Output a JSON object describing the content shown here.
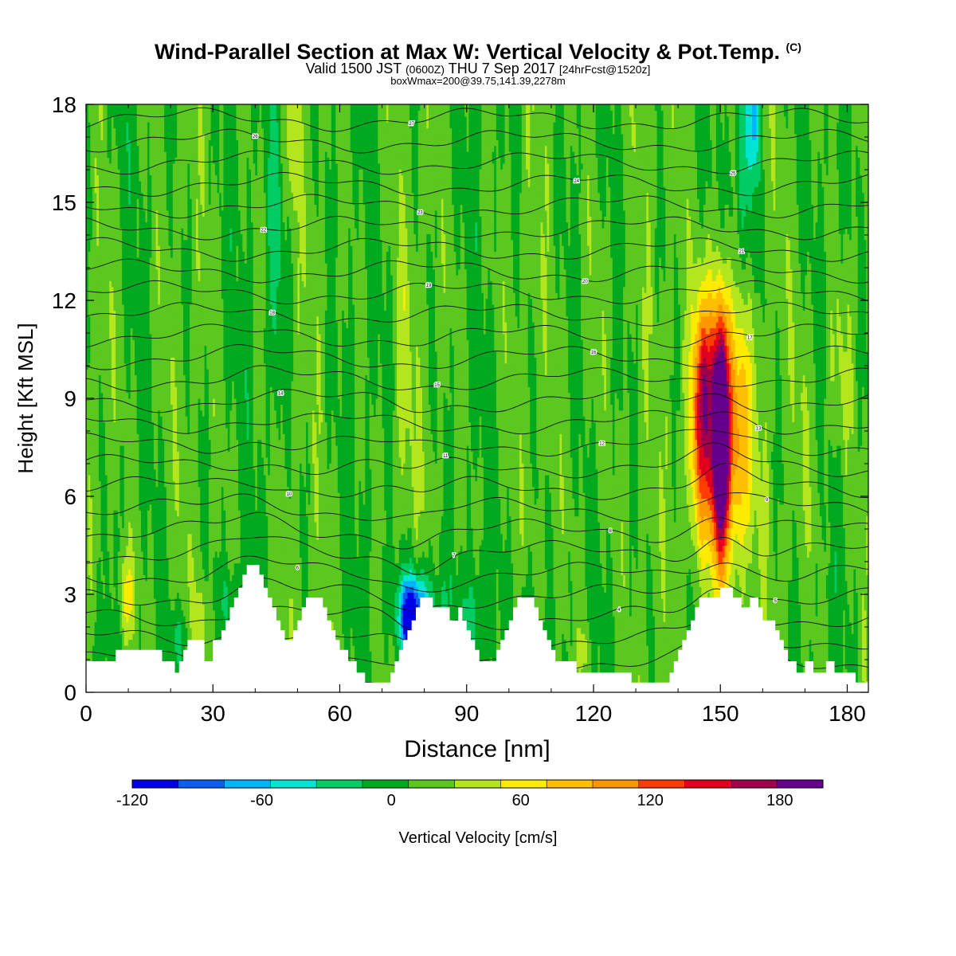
{
  "title": {
    "main": "Wind-Parallel Section at Max W: Vertical Velocity & Pot.Temp.",
    "copyright": "(C)",
    "valid_prefix": "Valid 1500 JST",
    "valid_z": "(0600Z)",
    "valid_date": "THU 7 Sep 2017",
    "fcst": "[24hrFcst@1520z]",
    "box": "boxWmax=200@39.75,141.39,2278m"
  },
  "chart_data": {
    "type": "heatmap",
    "xlabel": "Distance [nm]",
    "ylabel": "Height [Kft MSL]",
    "xlim": [
      0,
      185
    ],
    "ylim": [
      0,
      18
    ],
    "x_ticks": [
      0,
      30,
      60,
      90,
      120,
      150,
      180
    ],
    "y_ticks": [
      0,
      3,
      6,
      9,
      12,
      15,
      18
    ],
    "colorbar": {
      "label": "Vertical Velocity [cm/s]",
      "min": -120,
      "max": 200,
      "step": 20,
      "tick_values": [
        -120,
        -60,
        0,
        60,
        120,
        180
      ],
      "colors": [
        "#0000e6",
        "#0a5ff0",
        "#00b4ff",
        "#00e6d2",
        "#00cc64",
        "#00aa1e",
        "#5ac81e",
        "#b4e61e",
        "#ffeb00",
        "#ffbe00",
        "#ff9600",
        "#ff3c00",
        "#e1001e",
        "#a0004b",
        "#64008c"
      ]
    },
    "terrain_kft": [
      [
        0,
        0.95
      ],
      [
        2,
        0.95
      ],
      [
        7,
        0.95
      ],
      [
        7,
        1.3
      ],
      [
        18,
        1.3
      ],
      [
        18,
        0.95
      ],
      [
        21,
        0.95
      ],
      [
        21,
        0.6
      ],
      [
        22,
        0.6
      ],
      [
        22,
        0.95
      ],
      [
        23,
        0.95
      ],
      [
        23,
        1.3
      ],
      [
        24,
        1.3
      ],
      [
        24,
        1.6
      ],
      [
        28,
        1.6
      ],
      [
        28,
        0.95
      ],
      [
        30,
        0.95
      ],
      [
        30,
        1.6
      ],
      [
        32,
        1.6
      ],
      [
        32,
        1.9
      ],
      [
        33,
        1.9
      ],
      [
        33,
        2.2
      ],
      [
        34,
        2.2
      ],
      [
        34,
        2.6
      ],
      [
        35,
        2.6
      ],
      [
        35,
        2.9
      ],
      [
        36,
        2.9
      ],
      [
        36,
        3.2
      ],
      [
        37,
        3.2
      ],
      [
        37,
        3.6
      ],
      [
        38,
        3.6
      ],
      [
        38,
        3.9
      ],
      [
        41,
        3.9
      ],
      [
        41,
        3.6
      ],
      [
        42,
        3.6
      ],
      [
        42,
        3.2
      ],
      [
        43,
        3.2
      ],
      [
        43,
        2.9
      ],
      [
        44,
        2.9
      ],
      [
        44,
        2.6
      ],
      [
        45,
        2.6
      ],
      [
        45,
        2.2
      ],
      [
        46,
        2.2
      ],
      [
        46,
        1.9
      ],
      [
        47,
        1.9
      ],
      [
        47,
        1.6
      ],
      [
        49,
        1.6
      ],
      [
        49,
        1.9
      ],
      [
        50,
        1.9
      ],
      [
        50,
        2.2
      ],
      [
        51,
        2.2
      ],
      [
        51,
        2.6
      ],
      [
        52,
        2.6
      ],
      [
        52,
        2.9
      ],
      [
        56,
        2.9
      ],
      [
        56,
        2.6
      ],
      [
        57,
        2.6
      ],
      [
        57,
        2.2
      ],
      [
        58,
        2.2
      ],
      [
        58,
        1.9
      ],
      [
        59,
        1.9
      ],
      [
        59,
        1.6
      ],
      [
        60,
        1.6
      ],
      [
        60,
        1.3
      ],
      [
        62,
        1.3
      ],
      [
        62,
        0.95
      ],
      [
        64,
        0.95
      ],
      [
        64,
        0.6
      ],
      [
        66,
        0.6
      ],
      [
        66,
        0.3
      ],
      [
        72,
        0.3
      ],
      [
        72,
        0.6
      ],
      [
        73,
        0.6
      ],
      [
        73,
        0.95
      ],
      [
        74,
        0.95
      ],
      [
        74,
        1.3
      ],
      [
        75,
        1.3
      ],
      [
        75,
        1.6
      ],
      [
        76,
        1.6
      ],
      [
        76,
        1.9
      ],
      [
        77,
        1.9
      ],
      [
        77,
        2.2
      ],
      [
        78,
        2.2
      ],
      [
        78,
        2.6
      ],
      [
        79,
        2.6
      ],
      [
        79,
        2.9
      ],
      [
        82,
        2.9
      ],
      [
        82,
        2.6
      ],
      [
        86,
        2.6
      ],
      [
        86,
        2.2
      ],
      [
        88,
        2.2
      ],
      [
        88,
        2.6
      ],
      [
        89,
        2.6
      ],
      [
        89,
        2.2
      ],
      [
        90,
        2.2
      ],
      [
        90,
        1.9
      ],
      [
        91,
        1.9
      ],
      [
        91,
        1.6
      ],
      [
        92,
        1.6
      ],
      [
        92,
        1.3
      ],
      [
        93,
        1.3
      ],
      [
        93,
        0.95
      ],
      [
        97,
        0.95
      ],
      [
        97,
        1.3
      ],
      [
        98,
        1.3
      ],
      [
        98,
        1.6
      ],
      [
        99,
        1.6
      ],
      [
        99,
        1.9
      ],
      [
        100,
        1.9
      ],
      [
        100,
        2.2
      ],
      [
        101,
        2.2
      ],
      [
        101,
        2.6
      ],
      [
        102,
        2.6
      ],
      [
        102,
        2.9
      ],
      [
        106,
        2.9
      ],
      [
        106,
        2.6
      ],
      [
        107,
        2.6
      ],
      [
        107,
        2.2
      ],
      [
        108,
        2.2
      ],
      [
        108,
        1.9
      ],
      [
        109,
        1.9
      ],
      [
        109,
        1.6
      ],
      [
        110,
        1.6
      ],
      [
        110,
        1.3
      ],
      [
        111,
        1.3
      ],
      [
        111,
        0.95
      ],
      [
        116,
        0.95
      ],
      [
        116,
        0.6
      ],
      [
        129,
        0.6
      ],
      [
        129,
        0.3
      ],
      [
        138,
        0.3
      ],
      [
        138,
        0.6
      ],
      [
        139,
        0.6
      ],
      [
        139,
        0.95
      ],
      [
        140,
        0.95
      ],
      [
        140,
        1.3
      ],
      [
        141,
        1.3
      ],
      [
        141,
        1.6
      ],
      [
        142,
        1.6
      ],
      [
        142,
        1.9
      ],
      [
        143,
        1.9
      ],
      [
        143,
        2.2
      ],
      [
        144,
        2.2
      ],
      [
        144,
        2.6
      ],
      [
        145,
        2.6
      ],
      [
        145,
        2.9
      ],
      [
        150,
        2.9
      ],
      [
        150,
        3.2
      ],
      [
        153,
        3.2
      ],
      [
        153,
        2.9
      ],
      [
        155,
        2.9
      ],
      [
        155,
        2.6
      ],
      [
        157,
        2.6
      ],
      [
        157,
        2.9
      ],
      [
        159,
        2.9
      ],
      [
        159,
        2.6
      ],
      [
        160,
        2.6
      ],
      [
        160,
        2.2
      ],
      [
        163,
        2.2
      ],
      [
        163,
        1.9
      ],
      [
        164,
        1.9
      ],
      [
        164,
        1.6
      ],
      [
        165,
        1.6
      ],
      [
        165,
        1.3
      ],
      [
        166,
        1.3
      ],
      [
        166,
        0.95
      ],
      [
        168,
        0.95
      ],
      [
        168,
        0.6
      ],
      [
        170,
        0.6
      ],
      [
        170,
        0.95
      ],
      [
        172,
        0.95
      ],
      [
        172,
        0.6
      ],
      [
        175,
        0.6
      ],
      [
        175,
        0.95
      ],
      [
        177,
        0.95
      ],
      [
        177,
        0.6
      ],
      [
        182,
        0.6
      ],
      [
        182,
        0.3
      ],
      [
        185,
        0.3
      ]
    ],
    "w_features": [
      {
        "x": 150,
        "z": 7.8,
        "sx": 1.3,
        "sz": 2.4,
        "w": 190
      },
      {
        "x": 148.5,
        "z": 8.5,
        "sx": 4.0,
        "sz": 3.2,
        "w": 90
      },
      {
        "x": 146,
        "z": 9.5,
        "sx": 1.4,
        "sz": 1.6,
        "w": 60
      },
      {
        "x": 154,
        "z": 7.5,
        "sx": 2.6,
        "sz": 2.6,
        "w": 55
      },
      {
        "x": 145,
        "z": 7.0,
        "sx": 1.5,
        "sz": 2.0,
        "w": 45
      },
      {
        "x": 77,
        "z": 2.2,
        "sx": 2.0,
        "sz": 0.8,
        "w": -110
      },
      {
        "x": 79,
        "z": 2.6,
        "sx": 4.0,
        "sz": 1.0,
        "w": -50
      },
      {
        "x": 92,
        "z": 2.2,
        "sx": 2.0,
        "sz": 1.2,
        "w": -30
      },
      {
        "x": 104,
        "z": 2.6,
        "sx": 1.5,
        "sz": 0.9,
        "w": -25
      },
      {
        "x": 34,
        "z": 2.8,
        "sx": 2.0,
        "sz": 0.8,
        "w": -25
      },
      {
        "x": 22,
        "z": 1.6,
        "sx": 2.0,
        "sz": 0.8,
        "w": -30
      },
      {
        "x": 3,
        "z": 1.5,
        "sx": 2.0,
        "sz": 0.9,
        "w": -20
      },
      {
        "x": 9.5,
        "z": 2.9,
        "sx": 1.3,
        "sz": 1.1,
        "w": 50
      },
      {
        "x": 27,
        "z": 2.1,
        "sx": 1.3,
        "sz": 1.0,
        "w": 30
      },
      {
        "x": 118,
        "z": 1.3,
        "sx": 1.0,
        "sz": 0.6,
        "w": 25
      },
      {
        "x": 45,
        "z": 14,
        "sx": 1.2,
        "sz": 4.5,
        "w": -28
      },
      {
        "x": 49,
        "z": 17,
        "sx": 1.2,
        "sz": 1.3,
        "w": 25
      },
      {
        "x": 156,
        "z": 16,
        "sx": 1.6,
        "sz": 3.0,
        "w": -35
      },
      {
        "x": 158,
        "z": 17.5,
        "sx": 0.9,
        "sz": 1.2,
        "w": -60
      },
      {
        "x": 152,
        "z": 14.5,
        "sx": 1.2,
        "sz": 2.0,
        "w": -22
      },
      {
        "x": 75,
        "z": 10,
        "sx": 1.6,
        "sz": 3.2,
        "w": 20
      },
      {
        "x": 120,
        "z": 10,
        "sx": 2.0,
        "sz": 4.0,
        "w": 14
      },
      {
        "x": 5,
        "z": 10,
        "sx": 2.5,
        "sz": 4.0,
        "w": 12
      },
      {
        "x": 170,
        "z": 8,
        "sx": 3.0,
        "sz": 3.5,
        "w": 14
      },
      {
        "x": 178,
        "z": 10,
        "sx": 2.0,
        "sz": 2.0,
        "w": 20
      }
    ],
    "theta_contour_labels": [
      "1",
      "2",
      "3",
      "4",
      "5",
      "6",
      "7",
      "8",
      "9",
      "10",
      "11",
      "12",
      "13",
      "14",
      "15",
      "16",
      "17",
      "18",
      "19",
      "20",
      "21",
      "22",
      "23",
      "24",
      "25",
      "26",
      "27"
    ]
  }
}
